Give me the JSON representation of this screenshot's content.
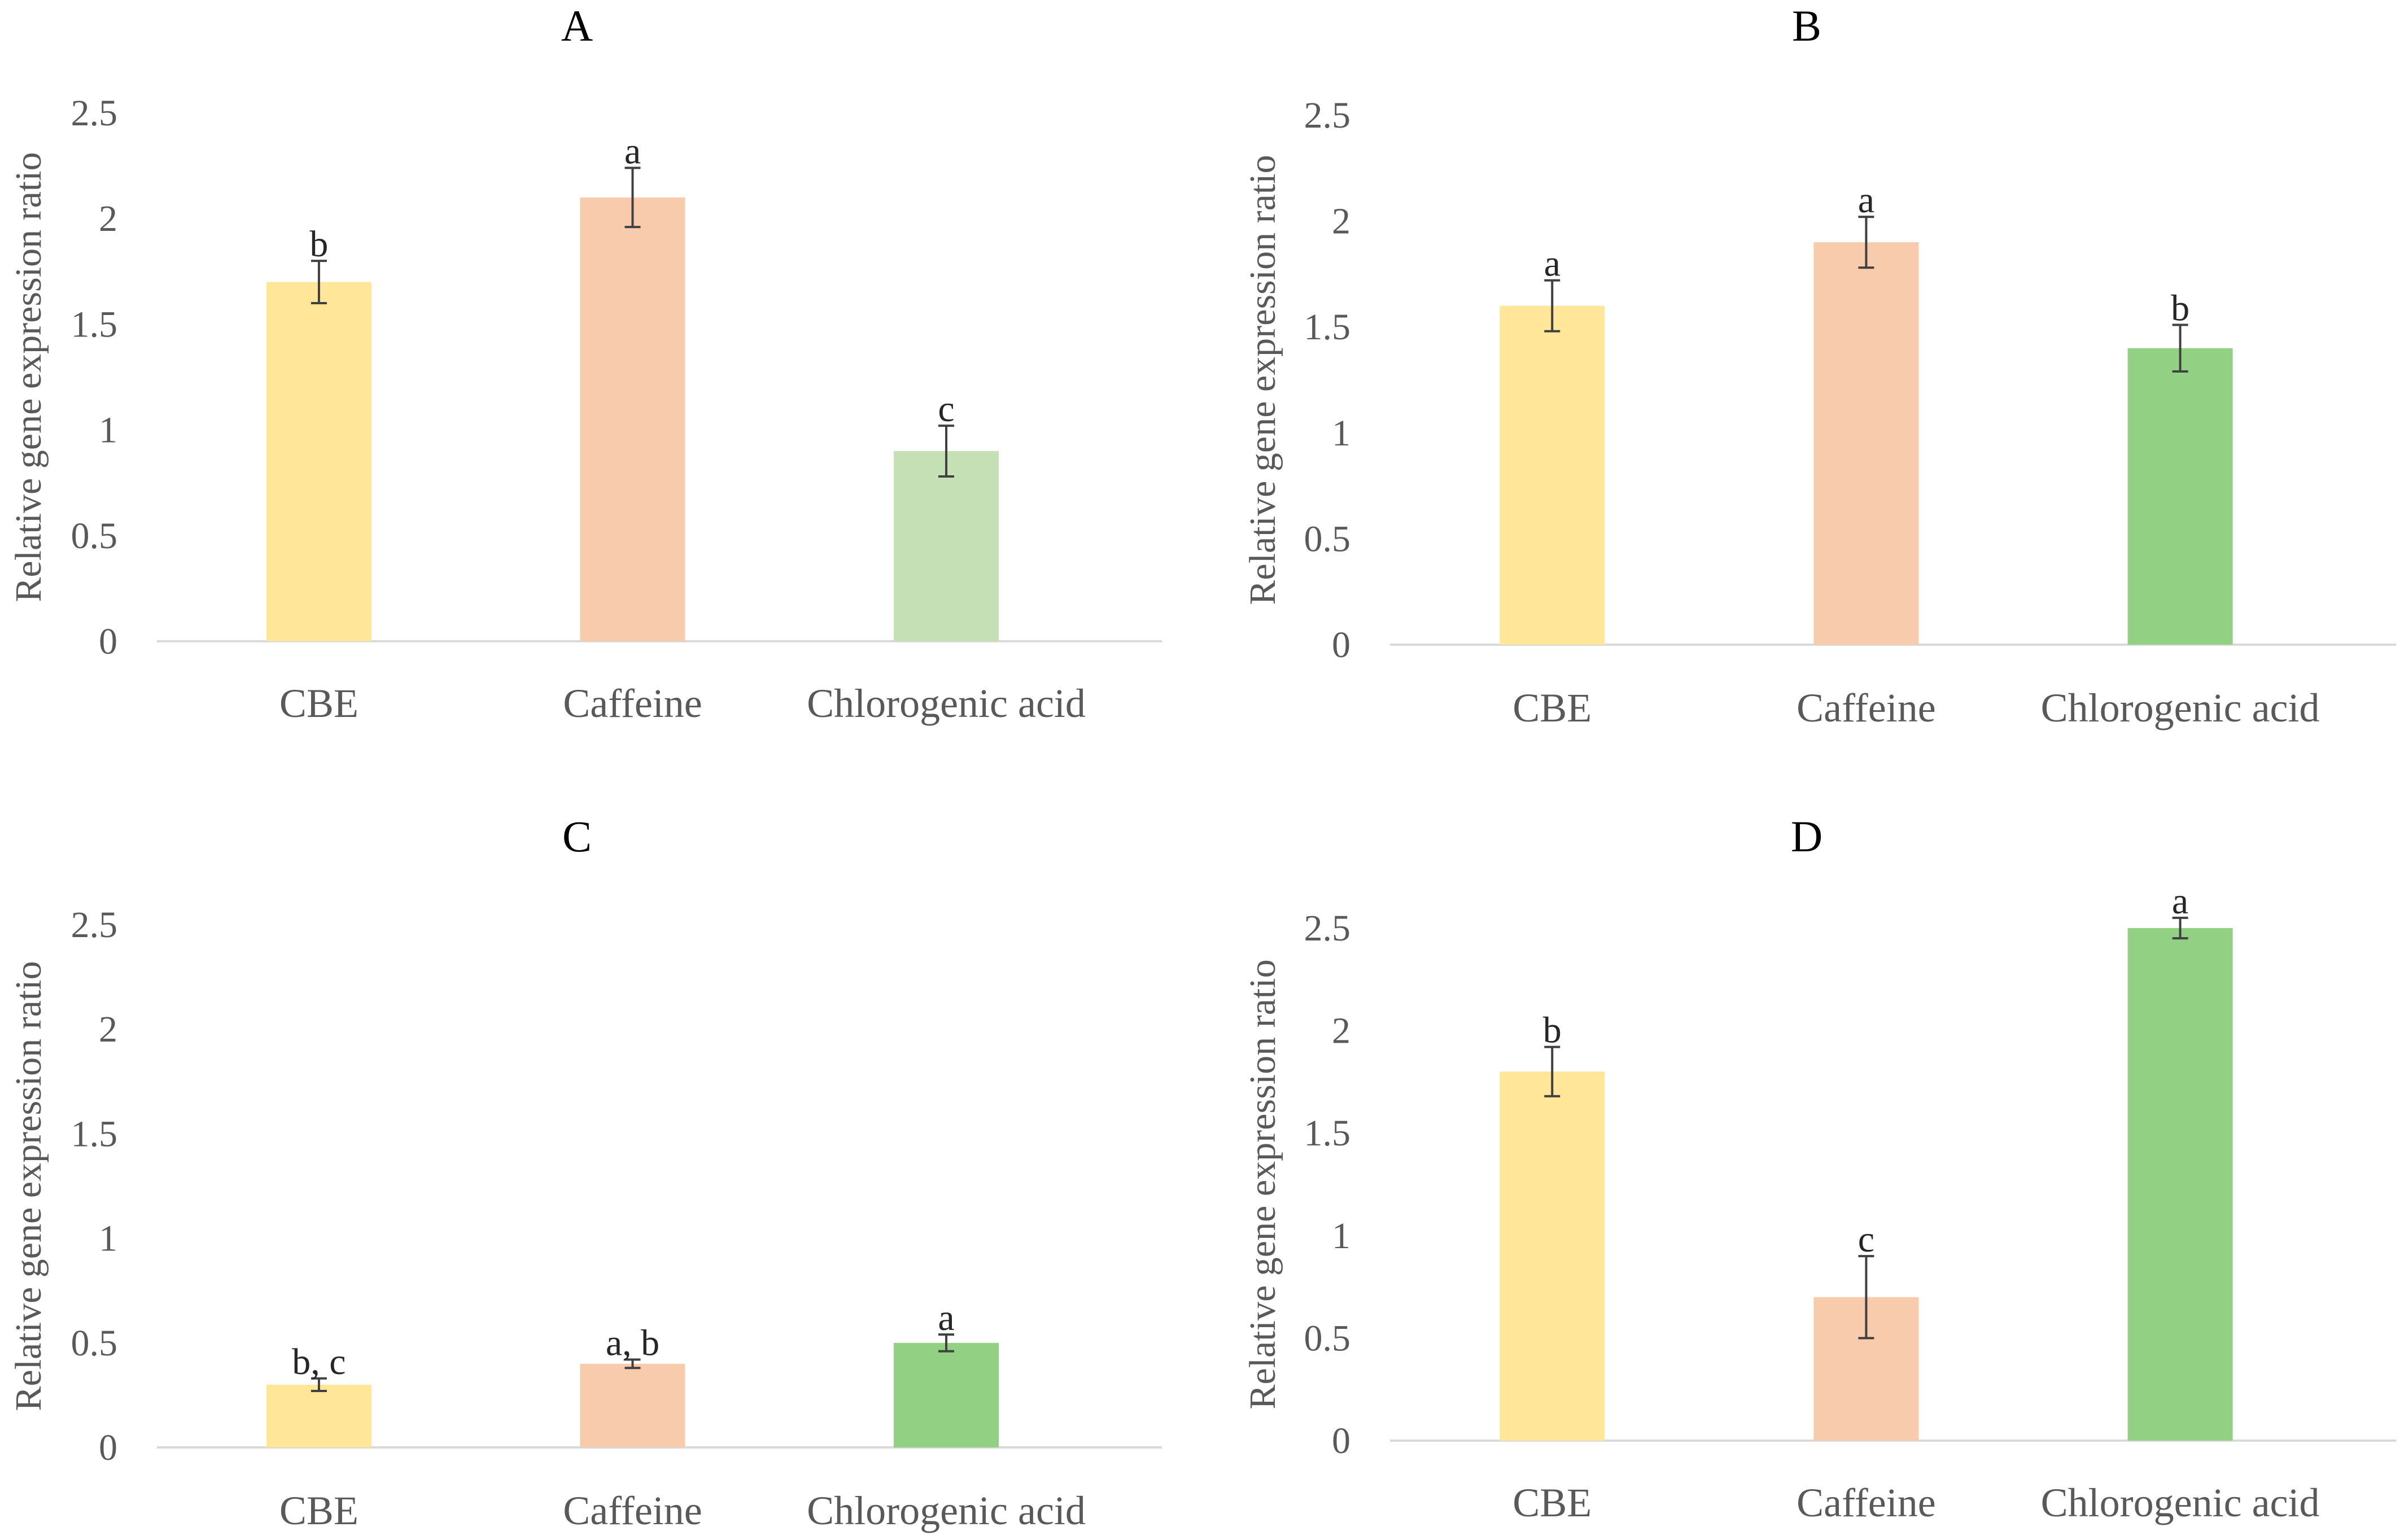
{
  "chart_data": [
    {
      "type": "bar",
      "title": "A",
      "xlabel": "",
      "ylabel": "Relative gene expression ratio",
      "ylim": [
        0,
        2.5
      ],
      "yticks": [
        "0",
        "0.5",
        "1",
        "1.5",
        "2",
        "2.5"
      ],
      "categories": [
        "CBE",
        "Caffeine",
        "Chlorogenic acid"
      ],
      "values": [
        1.7,
        2.1,
        0.9
      ],
      "errors": [
        0.1,
        0.14,
        0.12
      ],
      "significance": [
        "b",
        "a",
        "c"
      ],
      "colors": [
        "#FFE699",
        "#F8CBAD",
        "#C5E0B4"
      ]
    },
    {
      "type": "bar",
      "title": "B",
      "xlabel": "",
      "ylabel": "Relative gene expression ratio",
      "ylim": [
        0,
        2.5
      ],
      "yticks": [
        "0",
        "0.5",
        "1",
        "1.5",
        "2",
        "2.5"
      ],
      "categories": [
        "CBE",
        "Caffeine",
        "Chlorogenic acid"
      ],
      "values": [
        1.6,
        1.9,
        1.4
      ],
      "errors": [
        0.12,
        0.12,
        0.11
      ],
      "significance": [
        "a",
        "a",
        "b"
      ],
      "colors": [
        "#FFE699",
        "#F8CBAD",
        "#92D084"
      ]
    },
    {
      "type": "bar",
      "title": "C",
      "xlabel": "",
      "ylabel": "Relative gene expression ratio",
      "ylim": [
        0,
        2.5
      ],
      "yticks": [
        "0",
        "0.5",
        "1",
        "1.5",
        "2",
        "2.5"
      ],
      "categories": [
        "CBE",
        "Caffeine",
        "Chlorogenic acid"
      ],
      "values": [
        0.3,
        0.4,
        0.5
      ],
      "errors": [
        0.03,
        0.02,
        0.04
      ],
      "significance": [
        "b, c",
        "a, b",
        "a"
      ],
      "colors": [
        "#FFE699",
        "#F8CBAD",
        "#92D084"
      ]
    },
    {
      "type": "bar",
      "title": "D",
      "xlabel": "",
      "ylabel": "Relative gene expression ratio",
      "ylim": [
        0,
        2.5
      ],
      "yticks": [
        "0",
        "0.5",
        "1",
        "1.5",
        "2",
        "2.5"
      ],
      "categories": [
        "CBE",
        "Caffeine",
        "Chlorogenic acid"
      ],
      "values": [
        1.8,
        0.7,
        2.5
      ],
      "errors": [
        0.12,
        0.2,
        0.05
      ],
      "significance": [
        "b",
        "c",
        "a"
      ],
      "colors": [
        "#FFE699",
        "#F8CBAD",
        "#92D084"
      ]
    }
  ]
}
